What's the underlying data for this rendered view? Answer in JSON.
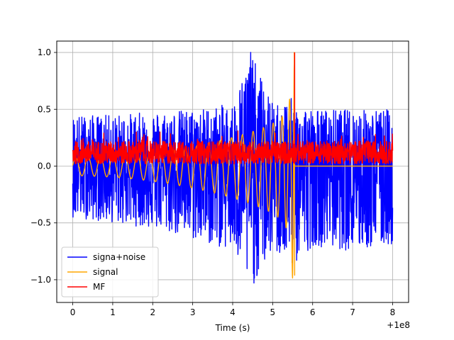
{
  "chart_data": {
    "type": "line",
    "title": "",
    "xlabel": "Time (s)",
    "ylabel": "",
    "x_offset_label": "+1e8",
    "xlim": [
      -0.4,
      8.4
    ],
    "ylim": [
      -1.2,
      1.1
    ],
    "grid": true,
    "legend_position": "lower-left",
    "x_ticks": [
      0,
      1,
      2,
      3,
      4,
      5,
      6,
      7,
      8
    ],
    "x_tick_labels": [
      "0",
      "1",
      "2",
      "3",
      "4",
      "5",
      "6",
      "7",
      "8"
    ],
    "y_ticks": [
      -1.0,
      -0.5,
      0.0,
      0.5,
      1.0
    ],
    "y_tick_labels": [
      "−1.0",
      "−0.5",
      "0.0",
      "0.5",
      "1.0"
    ],
    "series": [
      {
        "name": "signa+noise",
        "color": "#0000ff",
        "kind": "noise",
        "x_range": [
          0,
          8
        ],
        "upper_envelope": [
          [
            0,
            0.45
          ],
          [
            1,
            0.45
          ],
          [
            2,
            0.48
          ],
          [
            3,
            0.5
          ],
          [
            4,
            0.55
          ],
          [
            4.45,
            1.0
          ],
          [
            5,
            0.55
          ],
          [
            5.5,
            0.6
          ],
          [
            6,
            0.5
          ],
          [
            7,
            0.5
          ],
          [
            8,
            0.5
          ]
        ],
        "lower_envelope": [
          [
            0,
            -0.45
          ],
          [
            1,
            -0.5
          ],
          [
            2,
            -0.55
          ],
          [
            3,
            -0.65
          ],
          [
            4,
            -0.75
          ],
          [
            4.45,
            -1.09
          ],
          [
            5,
            -0.75
          ],
          [
            5.5,
            -0.9
          ],
          [
            6,
            -0.7
          ],
          [
            7,
            -0.75
          ],
          [
            8,
            -0.7
          ]
        ]
      },
      {
        "name": "signal",
        "color": "#ffa500",
        "kind": "chirp",
        "x_start": 0,
        "x_end": 5.55,
        "peak_max": 1.0,
        "peak_min": -0.96
      },
      {
        "name": "MF",
        "color": "#ff0000",
        "kind": "matched-filter",
        "x_range": [
          0,
          8
        ],
        "band": [
          0.02,
          0.22
        ],
        "spike_x": 5.55,
        "spike_y": 1.0
      }
    ]
  }
}
